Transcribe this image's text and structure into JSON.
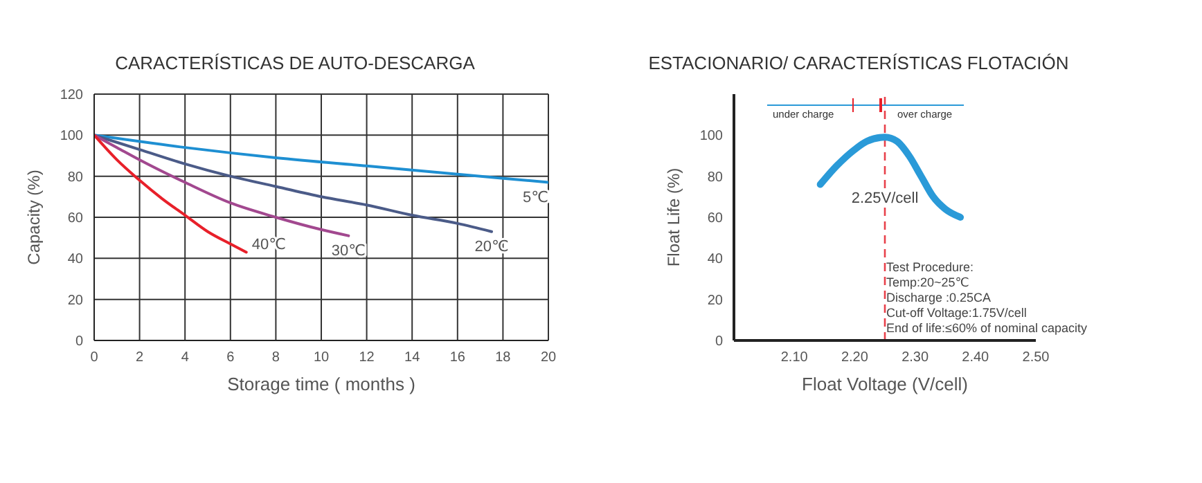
{
  "chart_data": [
    {
      "type": "line",
      "title": "CARACTERÍSTICAS DE AUTO-DESCARGA",
      "xlabel": "Storage time ( months )",
      "ylabel": "Capacity (%)",
      "xlim": [
        0,
        20
      ],
      "xticks": [
        0,
        2,
        4,
        6,
        8,
        10,
        12,
        14,
        16,
        18,
        20
      ],
      "ylim": [
        0,
        120
      ],
      "yticks": [
        0,
        20,
        40,
        60,
        80,
        100,
        120
      ],
      "grid": true,
      "legend": false,
      "marker": "none",
      "line_style": "solid",
      "series": [
        {
          "name": "5℃",
          "color": "#1e8fd2",
          "x": [
            0,
            4,
            8,
            12,
            16,
            20
          ],
          "values": [
            100,
            94,
            89,
            85,
            81,
            77
          ]
        },
        {
          "name": "20℃",
          "color": "#4b5b88",
          "x": [
            0,
            2,
            4,
            6,
            8,
            10,
            12,
            14,
            16,
            17.5
          ],
          "values": [
            100,
            93,
            86,
            80,
            75,
            70,
            66,
            61,
            57,
            53
          ]
        },
        {
          "name": "30℃",
          "color": "#a2488f",
          "x": [
            0,
            1,
            2,
            4,
            6,
            8,
            10,
            11.2
          ],
          "values": [
            100,
            94,
            88,
            77,
            67,
            60,
            54,
            51
          ]
        },
        {
          "name": "40℃",
          "color": "#e8202a",
          "x": [
            0,
            1,
            2,
            3,
            4,
            5,
            6,
            6.7
          ],
          "values": [
            100,
            88,
            78,
            69,
            61,
            53,
            47,
            43
          ]
        }
      ]
    },
    {
      "type": "line",
      "title": "ESTACIONARIO/ CARACTERÍSTICAS FLOTACIÓN",
      "xlabel": "Float Voltage (V/cell)",
      "ylabel": "Float Life (%)",
      "xlim": [
        2.0,
        2.5
      ],
      "xticks": [
        {
          "value": 2.1,
          "label": "2.10"
        },
        {
          "value": 2.2,
          "label": "2.20"
        },
        {
          "value": 2.3,
          "label": "2.30"
        },
        {
          "value": 2.4,
          "label": "2.40"
        },
        {
          "value": 2.5,
          "label": "2.50"
        }
      ],
      "ylim": [
        0,
        120
      ],
      "yticks": [
        0,
        20,
        40,
        60,
        80,
        100
      ],
      "grid": false,
      "legend": false,
      "marker": "none",
      "line_style": "solid",
      "series": [
        {
          "color": "#2a9ad8",
          "x": [
            2.143,
            2.17,
            2.2,
            2.22,
            2.25,
            2.27,
            2.29,
            2.31,
            2.33,
            2.35,
            2.375
          ],
          "values": [
            76,
            85,
            93,
            97,
            99,
            97,
            90,
            80,
            70,
            64,
            60
          ]
        }
      ],
      "ref_lines": [
        {
          "axis": "x",
          "value": 2.25,
          "label": "2.25V/cell",
          "color": "#e8404a",
          "line_style": "dashed"
        }
      ],
      "annotations": [
        "under charge",
        "over charge",
        "Test Procedure:",
        "Temp:20~25℃",
        "Discharge :0.25CA",
        "Cut-off Voltage:1.75V/cell",
        "End of life:≤60% of nominal capacity"
      ]
    }
  ]
}
